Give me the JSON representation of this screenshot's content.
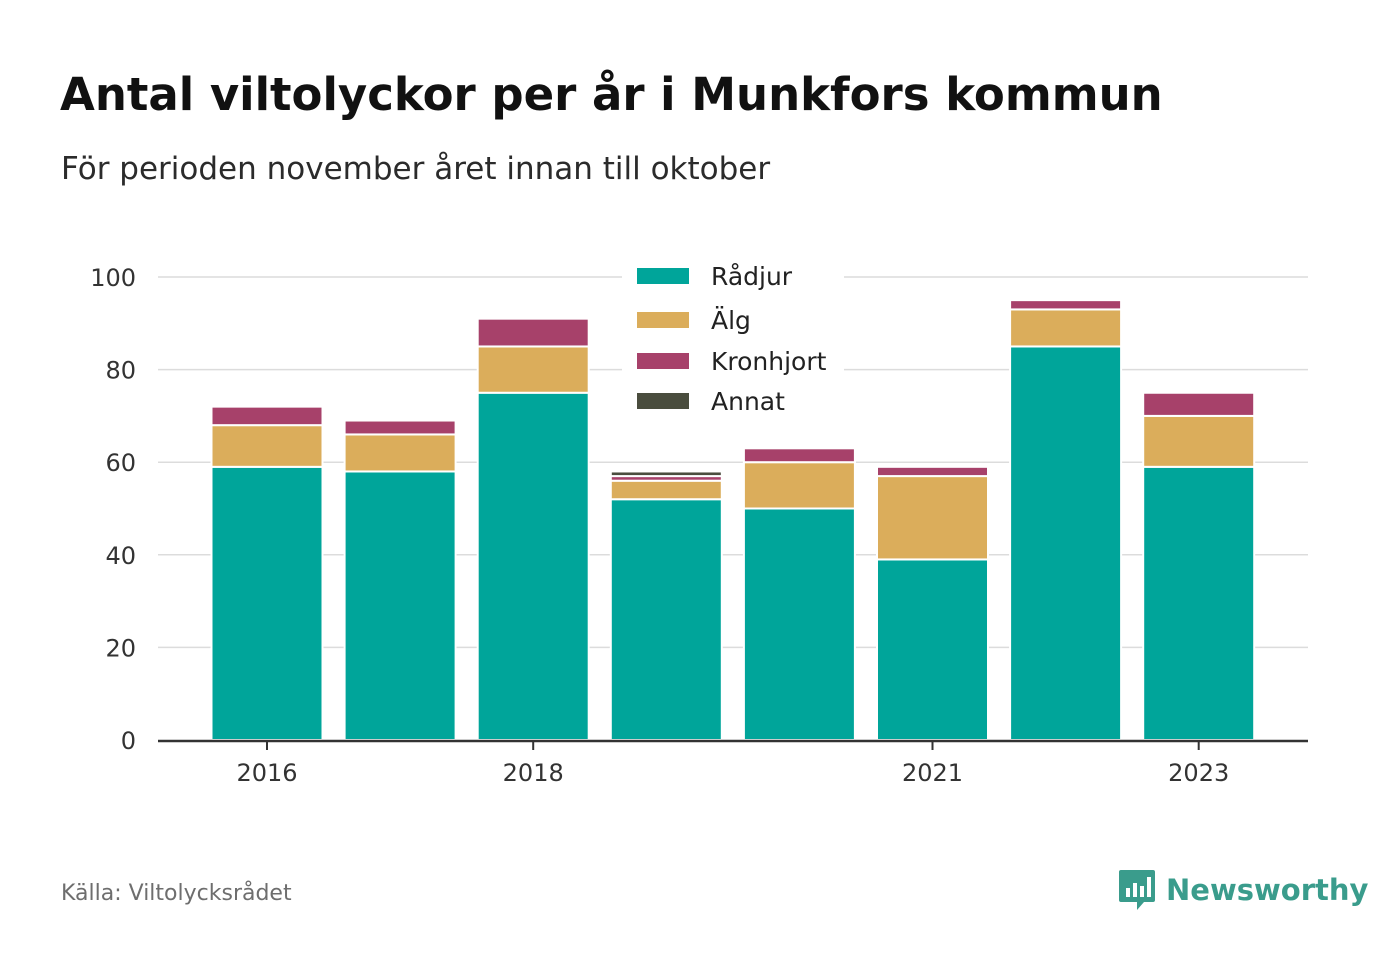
{
  "header": {
    "title": "Antal viltolyckor per år i Munkfors kommun",
    "subtitle": "För perioden november året innan till oktober"
  },
  "footer": {
    "source": "Källa: Viltolycksrådet",
    "brand": "Newsworthy",
    "brand_color": "#3a9c8c"
  },
  "chart_data": {
    "type": "bar",
    "stacked": true,
    "title": "Antal viltolyckor per år i Munkfors kommun",
    "subtitle": "För perioden november året innan till oktober",
    "x": [
      2016,
      2017,
      2018,
      2019,
      2020,
      2021,
      2022,
      2023
    ],
    "x_tick_labels": [
      "2016",
      "2018",
      "2021",
      "2023"
    ],
    "x_tick_values": [
      2016,
      2018,
      2021,
      2023
    ],
    "y_ticks": [
      0,
      20,
      40,
      60,
      80,
      100
    ],
    "ylim": [
      0,
      100
    ],
    "grid": true,
    "legend_position": "top-center",
    "series": [
      {
        "name": "Rådjur",
        "color": "#00a59a",
        "values": [
          59,
          58,
          75,
          52,
          50,
          39,
          85,
          59
        ]
      },
      {
        "name": "Älg",
        "color": "#dbad5b",
        "values": [
          9,
          8,
          10,
          4,
          10,
          18,
          8,
          11
        ]
      },
      {
        "name": "Kronhjort",
        "color": "#a7416a",
        "values": [
          4,
          3,
          6,
          1,
          3,
          2,
          2,
          5
        ]
      },
      {
        "name": "Annat",
        "color": "#4a4d3e",
        "values": [
          0,
          0,
          0,
          1,
          0,
          0,
          0,
          0
        ]
      }
    ]
  }
}
